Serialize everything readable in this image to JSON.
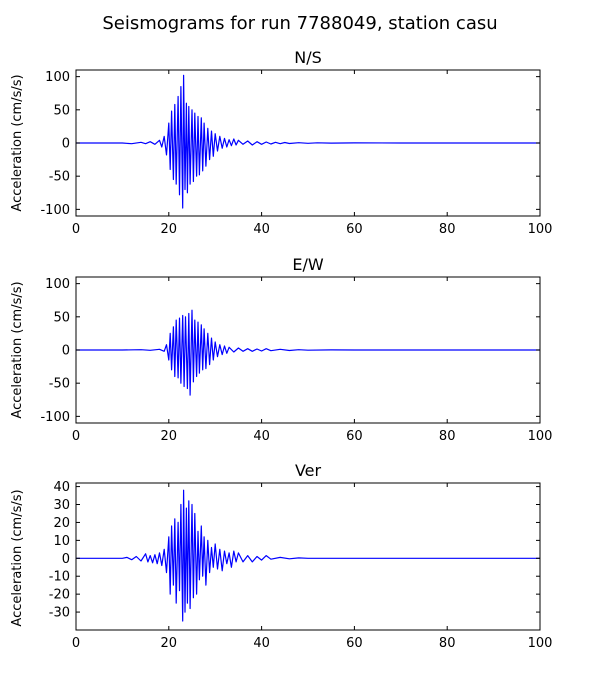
{
  "figure": {
    "title": "Seismograms for run 7788049, station casu"
  },
  "chart_data": [
    {
      "type": "line",
      "title": "N/S",
      "xlabel": "",
      "ylabel": "Acceleration (cm/s/s)",
      "xlim": [
        0,
        100
      ],
      "ylim": [
        -110,
        110
      ],
      "xticks": [
        "0",
        "20",
        "40",
        "60",
        "80",
        "100"
      ],
      "yticks": [
        "100",
        "50",
        "0",
        "-50",
        "-100"
      ],
      "grid": false,
      "series": [
        {
          "color": "#0000ff",
          "x": [
            0,
            10,
            12,
            14,
            15,
            16,
            17,
            18,
            18.5,
            19,
            19.5,
            20,
            20.3,
            20.6,
            21,
            21.3,
            21.6,
            22,
            22.3,
            22.6,
            23,
            23.2,
            23.5,
            23.8,
            24,
            24.3,
            24.6,
            25,
            25.3,
            25.6,
            26,
            26.3,
            26.6,
            27,
            27.3,
            27.6,
            28,
            28.4,
            28.8,
            29.2,
            29.6,
            30,
            30.5,
            31,
            31.5,
            32,
            32.5,
            33,
            33.5,
            34,
            34.5,
            35,
            36,
            37,
            38,
            39,
            40,
            41,
            42,
            43,
            44,
            45,
            46,
            48,
            50,
            52,
            55,
            60,
            70,
            80,
            90,
            100
          ],
          "y": [
            0,
            0,
            -1,
            1,
            -1,
            2,
            -2,
            4,
            -6,
            10,
            -18,
            30,
            -40,
            48,
            -55,
            58,
            -62,
            70,
            -78,
            85,
            -98,
            102,
            -70,
            60,
            -75,
            55,
            -62,
            50,
            -58,
            45,
            -50,
            40,
            -48,
            38,
            -42,
            30,
            -35,
            22,
            -25,
            18,
            -20,
            14,
            -12,
            10,
            -8,
            7,
            -6,
            5,
            -4,
            6,
            -3,
            4,
            -2,
            3,
            -3,
            2,
            -2,
            1.5,
            -1.5,
            1,
            -1,
            0.8,
            -0.8,
            0.5,
            -0.4,
            0.3,
            -0.2,
            0.1,
            0,
            0,
            0,
            0
          ]
        }
      ]
    },
    {
      "type": "line",
      "title": "E/W",
      "xlabel": "",
      "ylabel": "Acceleration (cm/s/s)",
      "xlim": [
        0,
        100
      ],
      "ylim": [
        -110,
        110
      ],
      "xticks": [
        "0",
        "20",
        "40",
        "60",
        "80",
        "100"
      ],
      "yticks": [
        "100",
        "50",
        "0",
        "-50",
        "-100"
      ],
      "grid": false,
      "series": [
        {
          "color": "#0000ff",
          "x": [
            0,
            10,
            14,
            16,
            18,
            19,
            19.5,
            20,
            20.3,
            20.6,
            21,
            21.3,
            21.6,
            22,
            22.3,
            22.6,
            23,
            23.3,
            23.6,
            24,
            24.3,
            24.6,
            25,
            25.3,
            25.6,
            26,
            26.3,
            26.6,
            27,
            27.3,
            27.6,
            28,
            28.4,
            28.8,
            29.2,
            29.6,
            30,
            30.5,
            31,
            31.5,
            32,
            32.5,
            33,
            34,
            35,
            36,
            37,
            38,
            39,
            40,
            41,
            42,
            44,
            46,
            48,
            50,
            55,
            60,
            70,
            80,
            90,
            100
          ],
          "y": [
            0,
            0,
            0.5,
            -0.5,
            1,
            -2,
            8,
            -15,
            25,
            -30,
            35,
            -40,
            45,
            -42,
            48,
            -50,
            52,
            -55,
            50,
            -58,
            55,
            -68,
            60,
            -48,
            45,
            -40,
            42,
            -35,
            38,
            -30,
            32,
            -28,
            25,
            -22,
            18,
            -15,
            12,
            -10,
            8,
            -7,
            6,
            -5,
            4,
            -3,
            3,
            -2,
            2,
            -2,
            1.5,
            -1.5,
            2,
            -1,
            1,
            -0.8,
            0.5,
            -0.3,
            0.2,
            0,
            0,
            0,
            0,
            0
          ]
        }
      ]
    },
    {
      "type": "line",
      "title": "Ver",
      "xlabel": "",
      "ylabel": "Acceleration (cm/s/s)",
      "xlim": [
        0,
        100
      ],
      "ylim": [
        -40,
        42
      ],
      "xticks": [
        "0",
        "20",
        "40",
        "60",
        "80",
        "100"
      ],
      "yticks": [
        "40",
        "30",
        "20",
        "10",
        "0",
        "-10",
        "-20",
        "-30"
      ],
      "grid": false,
      "series": [
        {
          "color": "#0000ff",
          "x": [
            0,
            10,
            11,
            12,
            13,
            14,
            15,
            15.5,
            16,
            16.5,
            17,
            17.5,
            18,
            18.5,
            19,
            19.5,
            20,
            20.3,
            20.6,
            21,
            21.3,
            21.6,
            22,
            22.3,
            22.6,
            23,
            23.2,
            23.5,
            23.8,
            24,
            24.3,
            24.6,
            25,
            25.3,
            25.6,
            26,
            26.3,
            26.6,
            27,
            27.3,
            27.6,
            28,
            28.4,
            28.8,
            29.2,
            29.6,
            30,
            30.5,
            31,
            31.5,
            32,
            32.5,
            33,
            33.5,
            34,
            34.5,
            35,
            36,
            37,
            38,
            39,
            40,
            41,
            42,
            44,
            46,
            48,
            50,
            55,
            60,
            70,
            80,
            90,
            100
          ],
          "y": [
            0,
            0,
            0.5,
            -0.8,
            1,
            -1.5,
            2.5,
            -2,
            1.5,
            -2.5,
            2,
            -3,
            3,
            -4,
            5,
            -8,
            12,
            -20,
            18,
            -15,
            22,
            -25,
            20,
            -18,
            30,
            -35,
            38,
            -30,
            28,
            -25,
            32,
            -28,
            30,
            -22,
            25,
            -20,
            15,
            -12,
            18,
            -10,
            12,
            -15,
            10,
            -8,
            6,
            -5,
            8,
            -6,
            5,
            -7,
            4,
            -3,
            3,
            -5,
            4,
            -2,
            3,
            -2,
            1.5,
            -2,
            1,
            -1,
            1.5,
            -0.5,
            0.5,
            -0.3,
            0.2,
            0,
            0,
            0,
            0,
            0,
            0,
            0
          ]
        }
      ]
    }
  ]
}
